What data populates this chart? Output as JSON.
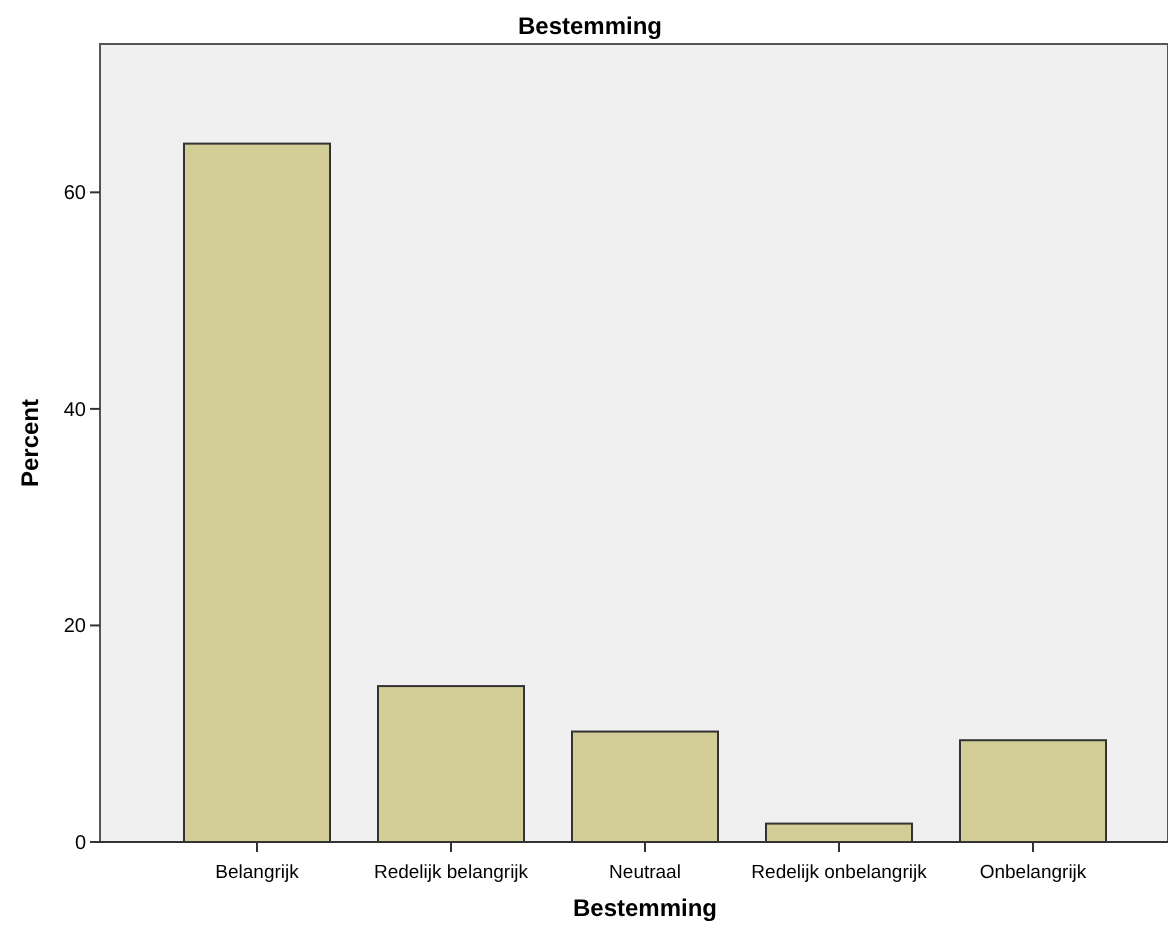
{
  "chart_data": {
    "type": "bar",
    "title": "Bestemming",
    "xlabel": "Bestemming",
    "ylabel": "Percent",
    "categories": [
      "Belangrijk",
      "Redelijk belangrijk",
      "Neutraal",
      "Redelijk onbelangrijk",
      "Onbelangrijk"
    ],
    "values": [
      64.5,
      14.4,
      10.2,
      1.7,
      9.4
    ],
    "color": "#d3ce97",
    "ylim": [
      0,
      73.7
    ],
    "yticks": [
      0,
      20,
      40,
      60
    ],
    "grid": false
  }
}
